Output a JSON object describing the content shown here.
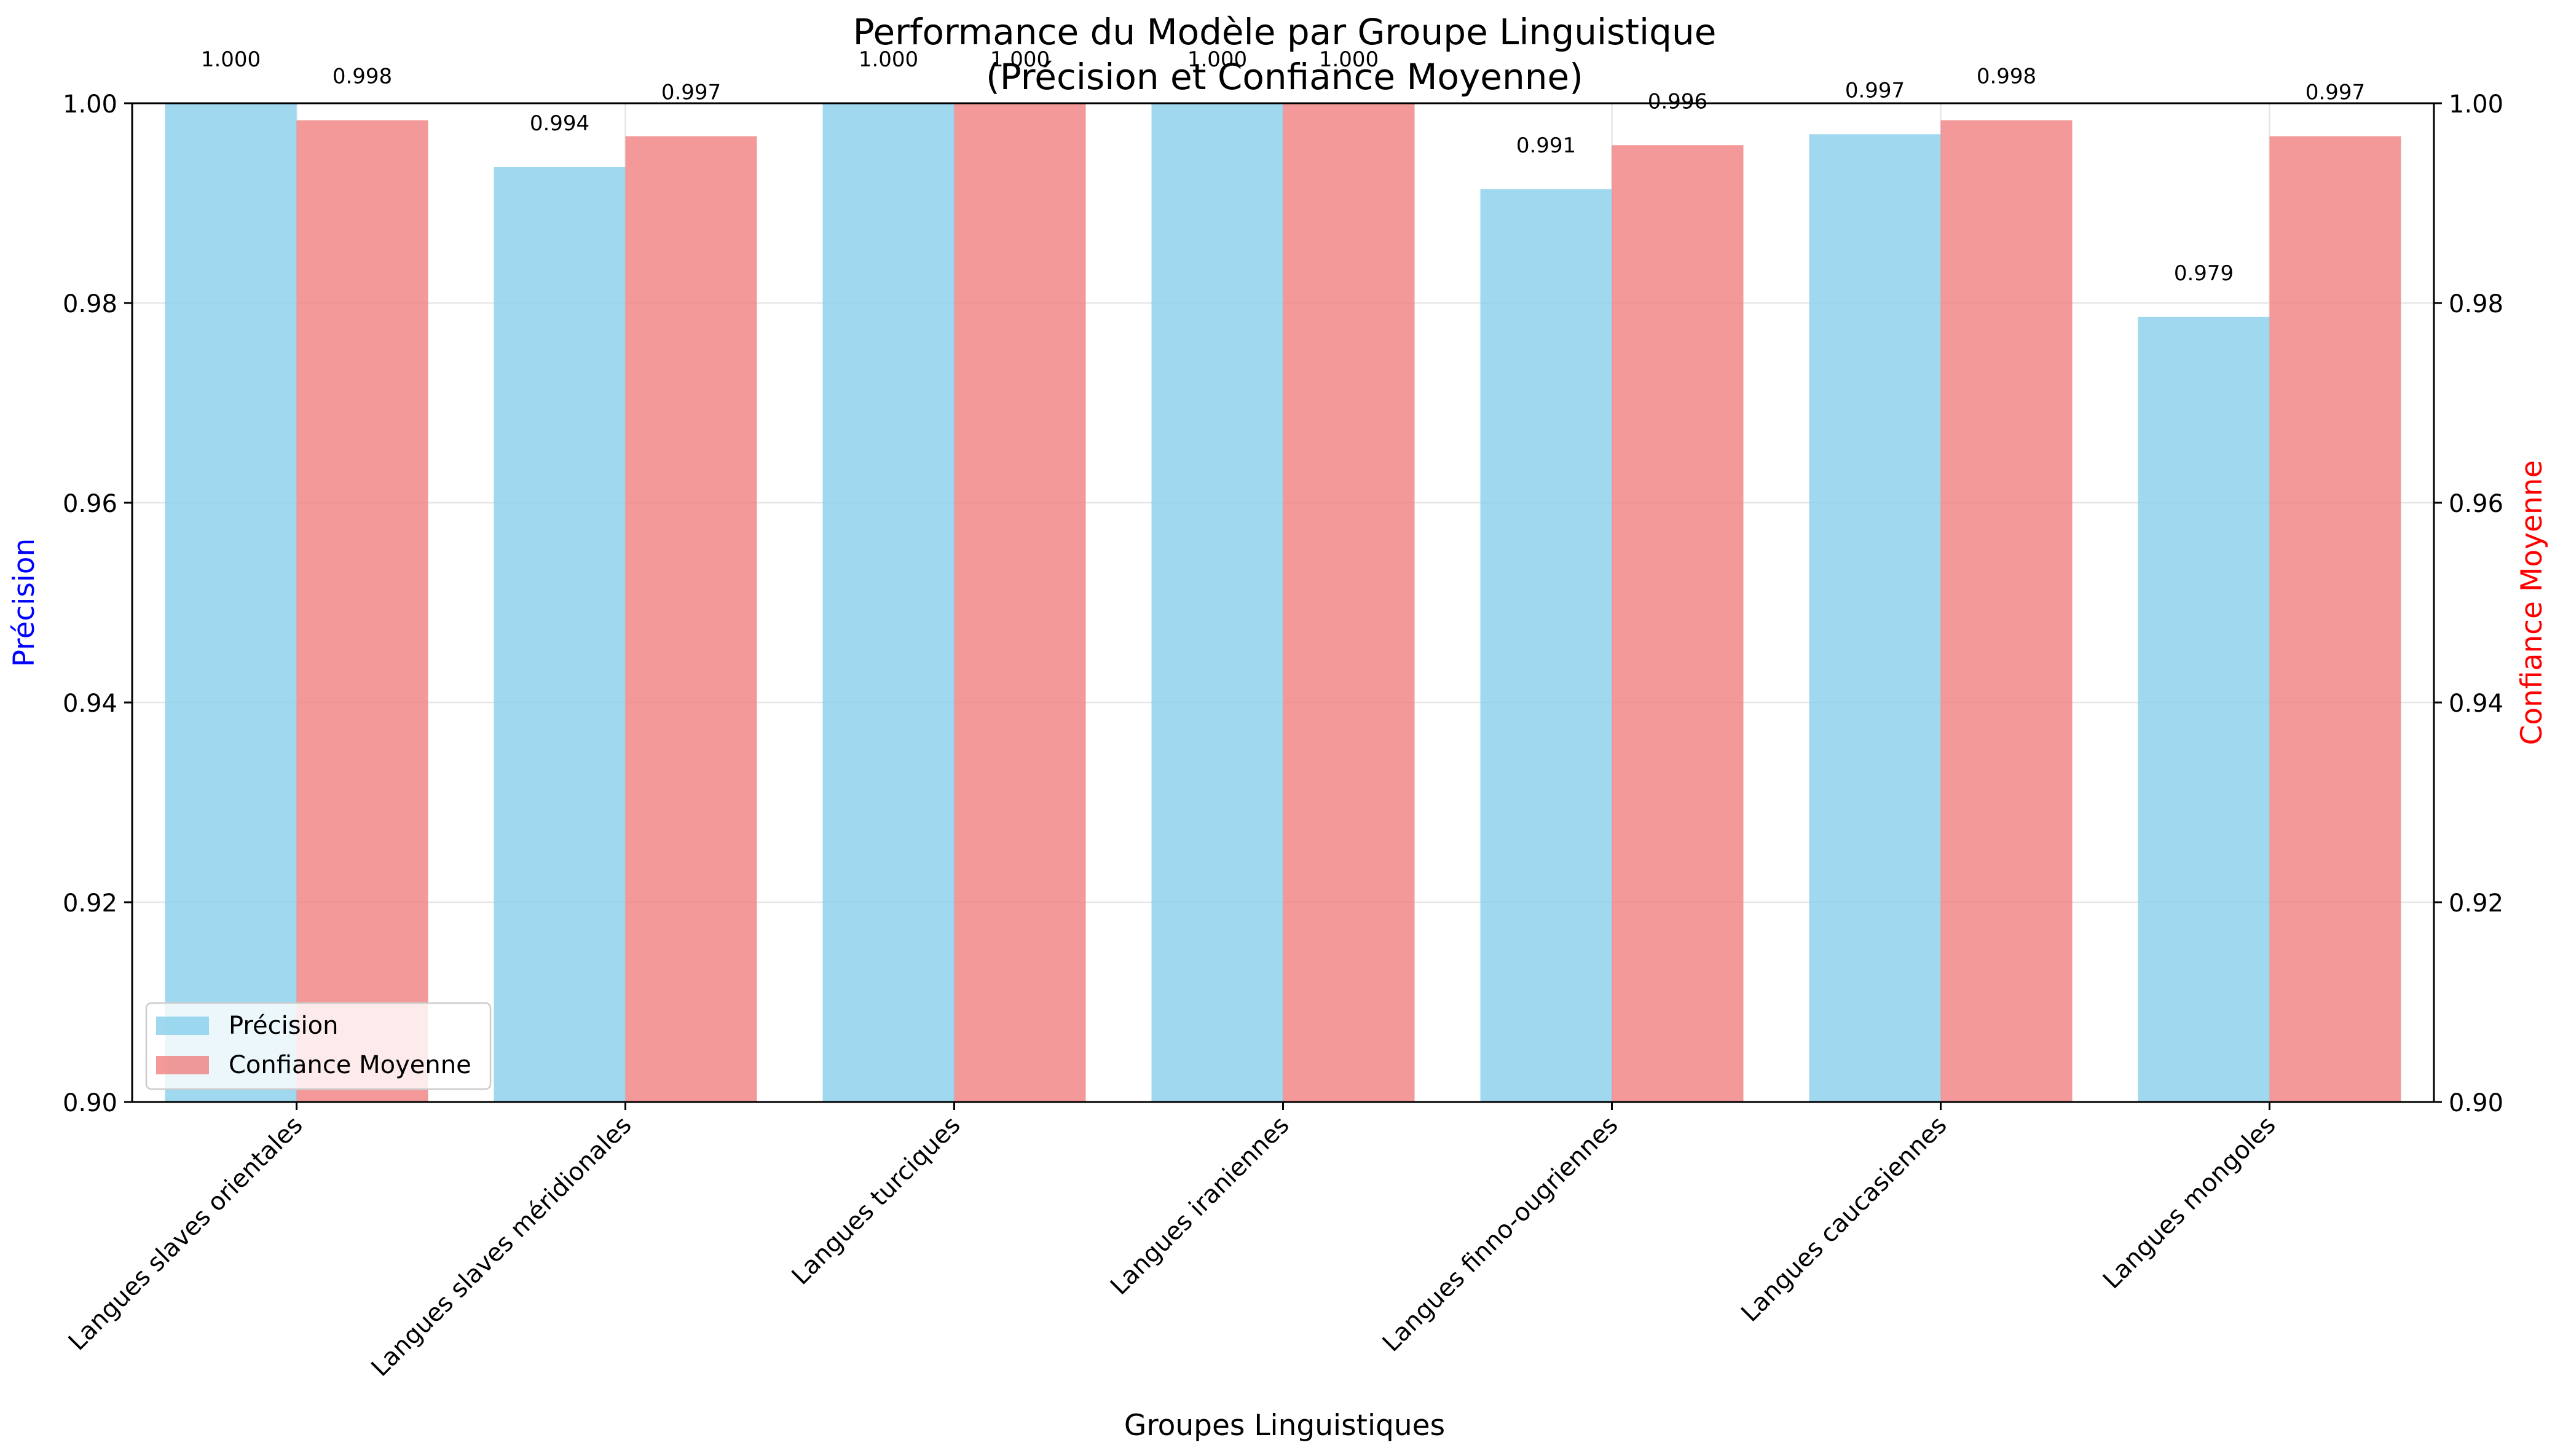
{
  "colors": {
    "precision": "#87CEEB",
    "confidence": "#F08080",
    "left_axis_label": "#0000FF",
    "right_axis_label": "#FF0000",
    "grid": "#E6E6E6"
  },
  "chart_data": {
    "type": "bar",
    "title": "Performance du Modèle par Groupe Linguistique\n(Précision et Confiance Moyenne)",
    "title_line1": "Performance du Modèle par Groupe Linguistique",
    "title_line2": "(Précision et Confiance Moyenne)",
    "xlabel": "Groupes Linguistiques",
    "ylabel_left": "Précision",
    "ylabel_right": "Confiance Moyenne",
    "ylim": [
      0.9,
      1.0
    ],
    "yticks": [
      0.9,
      0.92,
      0.94,
      0.96,
      0.98,
      1.0
    ],
    "ytick_labels": [
      "0.90",
      "0.92",
      "0.94",
      "0.96",
      "0.98",
      "1.00"
    ],
    "grid": true,
    "legend_position": "lower-left",
    "categories": [
      "Langues slaves orientales",
      "Langues slaves méridionales",
      "Langues turciques",
      "Langues iraniennes",
      "Langues finno-ougriennes",
      "Langues caucasiennes",
      "Langues mongoles"
    ],
    "series": [
      {
        "name": "Précision",
        "axis": "left",
        "values": [
          1.0,
          0.9936,
          1.0,
          1.0,
          0.9914,
          0.9969,
          0.9786
        ],
        "labels": [
          "1.000",
          "0.994",
          "1.000",
          "1.000",
          "0.991",
          "0.997",
          "0.979"
        ]
      },
      {
        "name": "Confiance Moyenne",
        "axis": "right",
        "values": [
          0.9983,
          0.9967,
          1.0,
          1.0,
          0.9958,
          0.9983,
          0.9967
        ],
        "labels": [
          "0.998",
          "0.997",
          "1.000",
          "1.000",
          "0.996",
          "0.998",
          "0.997"
        ]
      }
    ]
  }
}
